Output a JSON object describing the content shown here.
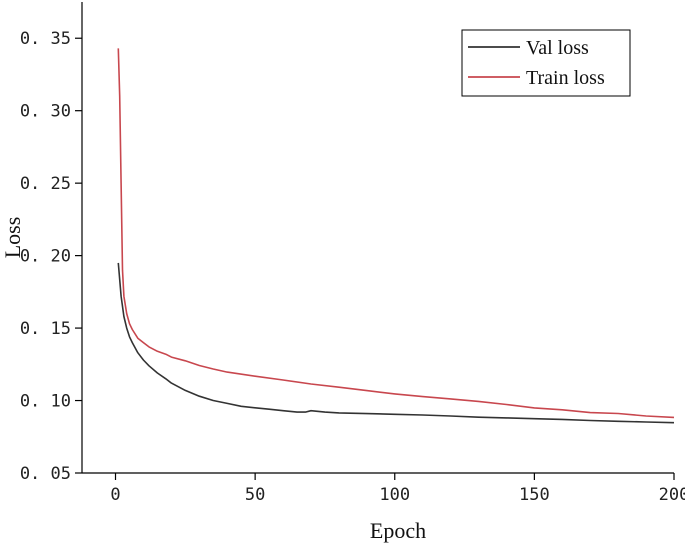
{
  "chart_data": {
    "type": "line",
    "title": "",
    "xlabel": "Epoch",
    "ylabel": "Loss",
    "xlim": [
      -12,
      200
    ],
    "ylim": [
      0.05,
      0.375
    ],
    "xticks": [
      0,
      50,
      100,
      150,
      200
    ],
    "xtick_labels": [
      "0",
      "50",
      "100",
      "150",
      "200"
    ],
    "yticks": [
      0.05,
      0.1,
      0.15,
      0.2,
      0.25,
      0.3,
      0.35
    ],
    "ytick_labels": [
      "0. 05",
      "0. 10",
      "0. 15",
      "0. 20",
      "0. 25",
      "0. 30",
      "0. 35"
    ],
    "grid": false,
    "legend_position": "top-right",
    "series": [
      {
        "name": "Val loss",
        "color": "#333333",
        "x": [
          1,
          2,
          3,
          4,
          5,
          6,
          8,
          10,
          12,
          15,
          18,
          20,
          25,
          30,
          35,
          40,
          45,
          50,
          55,
          60,
          65,
          68,
          70,
          75,
          80,
          90,
          100,
          110,
          120,
          130,
          140,
          150,
          160,
          170,
          180,
          190,
          200
        ],
        "y": [
          0.195,
          0.172,
          0.158,
          0.15,
          0.144,
          0.14,
          0.133,
          0.128,
          0.124,
          0.119,
          0.115,
          0.112,
          0.107,
          0.103,
          0.1,
          0.098,
          0.096,
          0.095,
          0.094,
          0.093,
          0.092,
          0.092,
          0.093,
          0.092,
          0.0915,
          0.091,
          0.0905,
          0.09,
          0.0893,
          0.0885,
          0.088,
          0.0875,
          0.087,
          0.0862,
          0.0857,
          0.0852,
          0.0847
        ]
      },
      {
        "name": "Train loss",
        "color": "#c8474e",
        "x": [
          1,
          1.5,
          2,
          2.5,
          3,
          4,
          5,
          6,
          8,
          10,
          12,
          15,
          18,
          20,
          25,
          30,
          35,
          40,
          50,
          60,
          70,
          80,
          90,
          100,
          110,
          120,
          130,
          140,
          150,
          160,
          170,
          180,
          190,
          200
        ],
        "y": [
          0.343,
          0.31,
          0.25,
          0.19,
          0.172,
          0.16,
          0.153,
          0.149,
          0.143,
          0.14,
          0.137,
          0.134,
          0.132,
          0.13,
          0.127,
          0.124,
          0.122,
          0.12,
          0.117,
          0.114,
          0.111,
          0.109,
          0.107,
          0.105,
          0.103,
          0.101,
          0.099,
          0.097,
          0.095,
          0.094,
          0.092,
          0.091,
          0.089,
          0.088
        ]
      }
    ]
  }
}
